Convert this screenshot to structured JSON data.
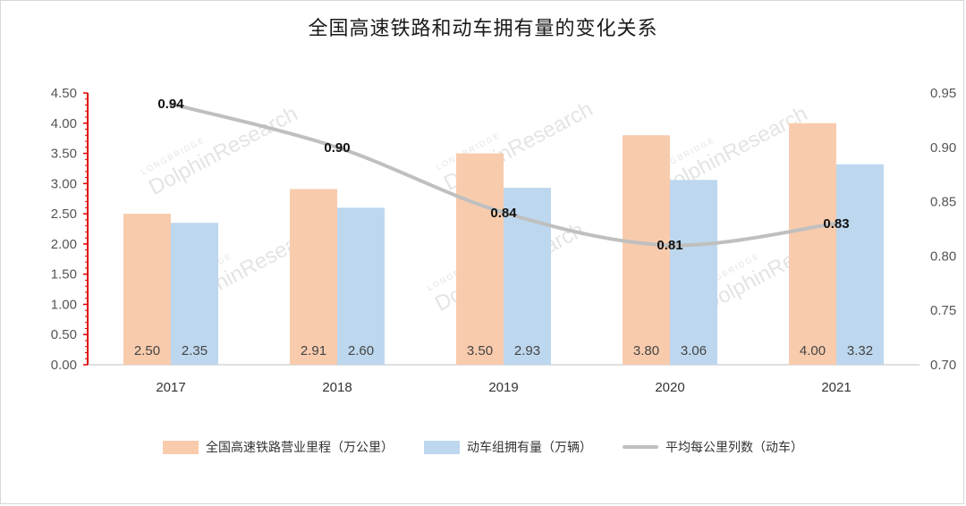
{
  "title": "全国高速铁路和动车拥有量的变化关系",
  "watermark": {
    "line1": "LONGBRIDGE",
    "line2": "DolphinResearch"
  },
  "colors": {
    "bar1": "#f8cbad",
    "bar2": "#bdd7ee",
    "line": "#bfbfbf",
    "left_axis": "#e00000"
  },
  "chart_data": {
    "type": "bar",
    "categories": [
      "2017",
      "2018",
      "2019",
      "2020",
      "2021"
    ],
    "series": [
      {
        "name": "全国高速铁路营业里程（万公里）",
        "type": "bar",
        "axis": "left",
        "values": [
          2.5,
          2.91,
          3.5,
          3.8,
          4.0
        ],
        "labels": [
          "2.50",
          "2.91",
          "3.50",
          "3.80",
          "4.00"
        ]
      },
      {
        "name": "动车组拥有量（万辆）",
        "type": "bar",
        "axis": "left",
        "values": [
          2.35,
          2.6,
          2.93,
          3.06,
          3.32
        ],
        "labels": [
          "2.35",
          "2.60",
          "2.93",
          "3.06",
          "3.32"
        ]
      },
      {
        "name": "平均每公里列数（动车）",
        "type": "line",
        "axis": "right",
        "values": [
          0.94,
          0.9,
          0.84,
          0.81,
          0.83
        ],
        "labels": [
          "0.94",
          "0.90",
          "0.84",
          "0.81",
          "0.83"
        ]
      }
    ],
    "left_axis": {
      "ylim": [
        0,
        4.5
      ],
      "ticks": [
        "0.00",
        "0.50",
        "1.00",
        "1.50",
        "2.00",
        "2.50",
        "3.00",
        "3.50",
        "4.00",
        "4.50"
      ]
    },
    "right_axis": {
      "ylim": [
        0.7,
        0.95
      ],
      "ticks": [
        "0.70",
        "0.75",
        "0.80",
        "0.85",
        "0.90",
        "0.95"
      ]
    },
    "legend_position": "bottom",
    "grid": false
  }
}
